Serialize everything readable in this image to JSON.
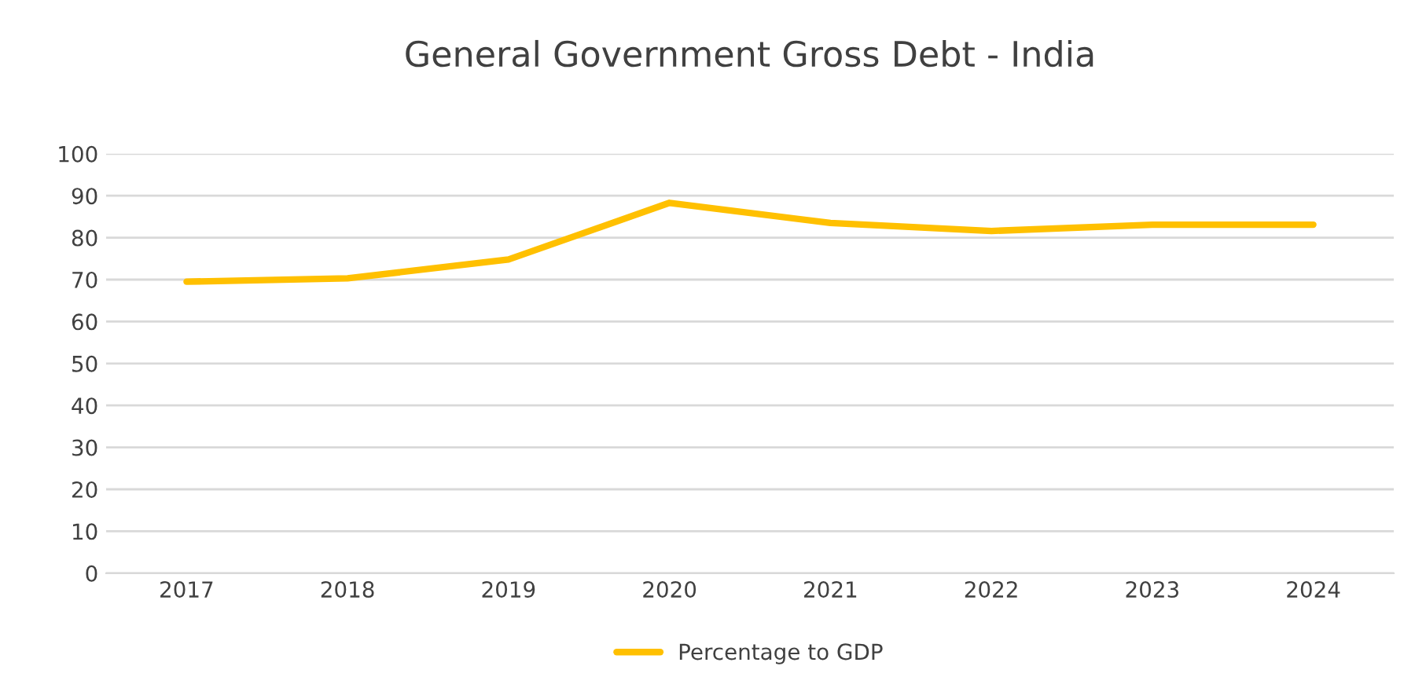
{
  "chart_data": {
    "type": "line",
    "title": "General Government Gross Debt - India",
    "categories": [
      "2017",
      "2018",
      "2019",
      "2020",
      "2021",
      "2022",
      "2023",
      "2024"
    ],
    "series": [
      {
        "name": "Percentage to GDP",
        "color": "#ffc000",
        "values": [
          69.5,
          70.3,
          74.8,
          88.3,
          83.5,
          81.6,
          83.1,
          83.1
        ]
      }
    ],
    "ylim": [
      0,
      100
    ],
    "yticks": [
      0,
      10,
      20,
      30,
      40,
      50,
      60,
      70,
      80,
      90,
      100
    ],
    "grid": "y",
    "legend": "bottom",
    "marker": "none",
    "line_style": "solid"
  }
}
